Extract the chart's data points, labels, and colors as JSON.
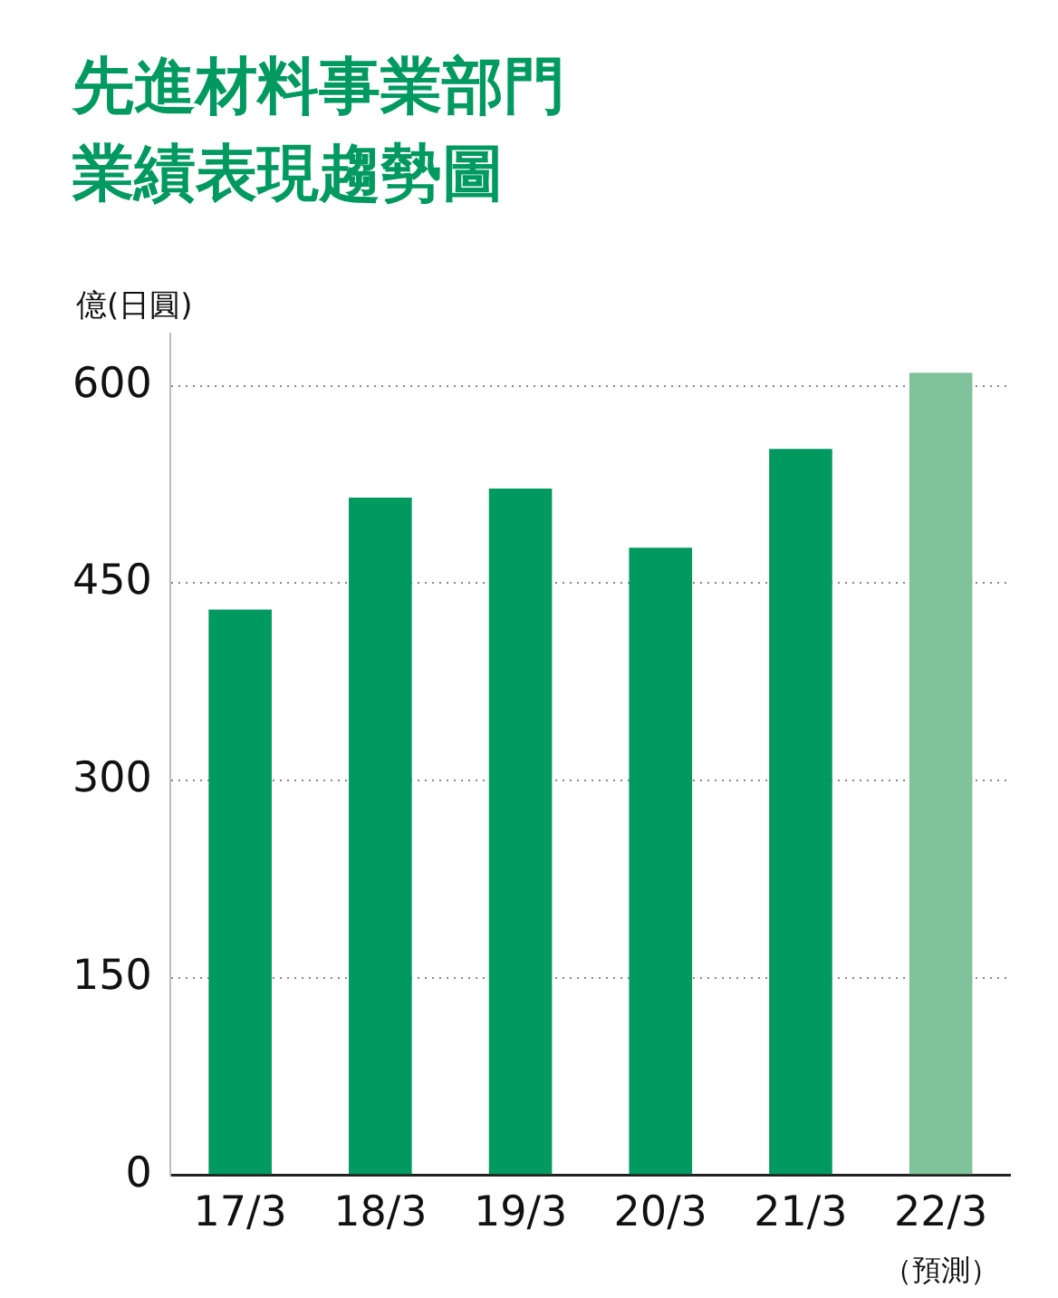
{
  "chart_data": {
    "type": "bar",
    "title": "先進材料事業部門業績表現趨勢圖",
    "ylabel": "億(日圓)",
    "categories": [
      "17/3",
      "18/3",
      "19/3",
      "20/3",
      "21/3",
      "22/3"
    ],
    "values": [
      430,
      515,
      522,
      477,
      552,
      610
    ],
    "colors": [
      "#009a61",
      "#009a61",
      "#009a61",
      "#009a61",
      "#009a61",
      "#80c29c"
    ],
    "ylim": [
      0,
      640
    ],
    "yticks": [
      0,
      150,
      300,
      450,
      600
    ],
    "grid": "y",
    "legend": false,
    "annotations": [
      "（預測）"
    ]
  }
}
